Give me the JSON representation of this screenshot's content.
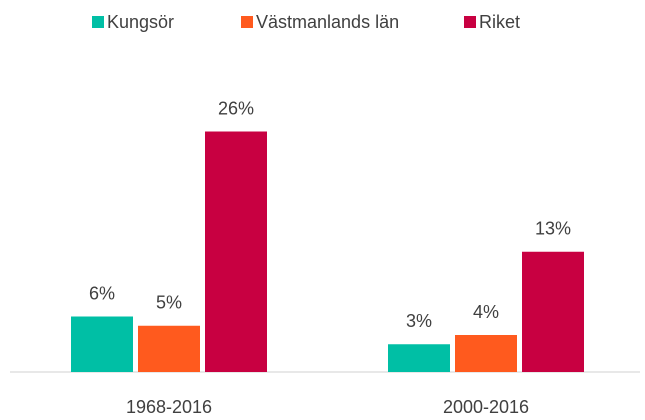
{
  "chart_data": {
    "type": "bar",
    "categories": [
      "1968-2016",
      "2000-2016"
    ],
    "series": [
      {
        "name": "Kungsör",
        "color": "#00bfa5",
        "values": [
          6,
          3
        ],
        "value_labels": [
          "6%",
          "3%"
        ]
      },
      {
        "name": "Västmanlands län",
        "color": "#ff5a1e",
        "values": [
          5,
          4
        ],
        "value_labels": [
          "5%",
          "4%"
        ]
      },
      {
        "name": "Riket",
        "color": "#c80041",
        "values": [
          26,
          13
        ],
        "value_labels": [
          "26%",
          "13%"
        ]
      }
    ],
    "legend": "top"
  }
}
